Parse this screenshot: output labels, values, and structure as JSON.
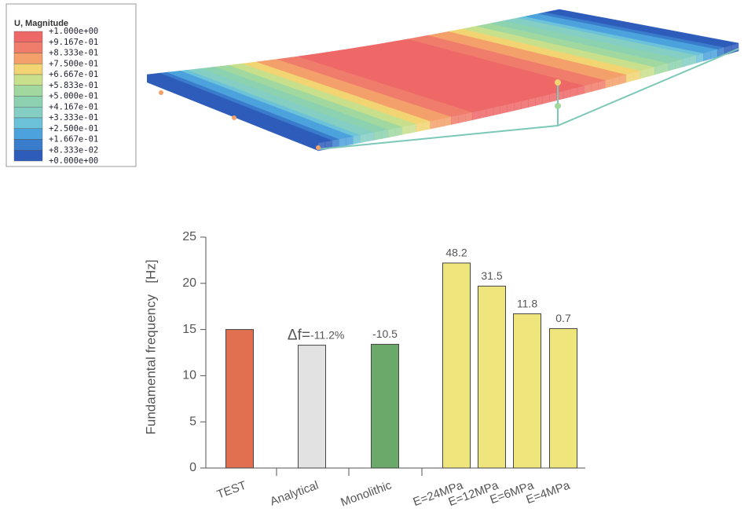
{
  "contour_legend": {
    "title": "U, Magnitude",
    "levels": [
      "+1.000e+00",
      "+9.167e-01",
      "+8.333e-01",
      "+7.500e-01",
      "+6.667e-01",
      "+5.833e-01",
      "+5.000e-01",
      "+4.167e-01",
      "+3.333e-01",
      "+2.500e-01",
      "+1.667e-01",
      "+8.333e-02",
      "+0.000e+00"
    ],
    "colors": [
      "#ee6868",
      "#f07c6c",
      "#f4a06a",
      "#f2d472",
      "#c8e08c",
      "#a0d8a0",
      "#8cd2b0",
      "#84cec4",
      "#6cc2d8",
      "#4ca2dc",
      "#3a7ccc",
      "#2e5cba"
    ]
  },
  "chart_data": {
    "type": "bar",
    "y_label": "Fundamental frequency   [Hz]",
    "categories": [
      "TEST",
      "Analytical",
      "Monolithic",
      "E=24MPa",
      "E=12MPa",
      "E=6MPa",
      "E=4MPa"
    ],
    "values": [
      15,
      13.3,
      13.4,
      22.2,
      19.7,
      16.7,
      15.1
    ],
    "colors": [
      "#e0704f",
      "#e2e2e2",
      "#6aa96a",
      "#eee57c",
      "#eee57c",
      "#eee57c",
      "#eee57c"
    ],
    "delta_label": "Δf=",
    "delta_values": [
      null,
      "-11.2%",
      "-10.5",
      "48.2",
      "31.5",
      "11.8",
      "0.7"
    ],
    "ylim": [
      0,
      25
    ],
    "yticks": [
      0,
      5,
      10,
      15,
      20,
      25
    ]
  }
}
